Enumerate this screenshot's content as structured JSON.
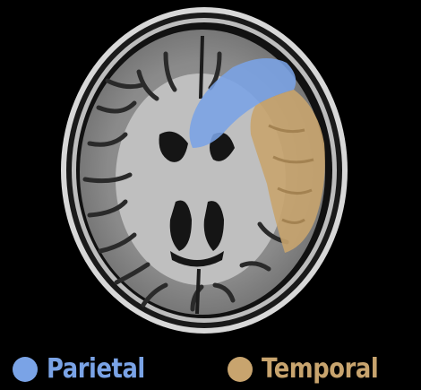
{
  "legend": {
    "parietal": {
      "label": "Parietal",
      "color": "#7aa3e6"
    },
    "temporal": {
      "label": "Temporal",
      "color": "#c8a46e"
    }
  },
  "image": {
    "subject": "axial brain MRI slice",
    "background_color": "#000000"
  }
}
